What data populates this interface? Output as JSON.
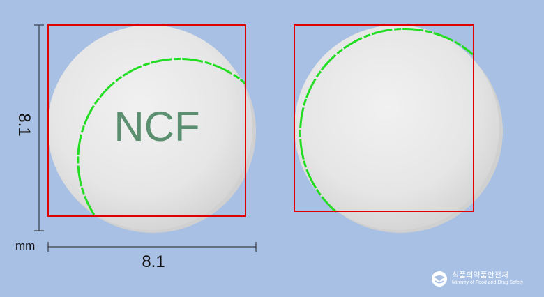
{
  "dimensions": {
    "height_value": "8.1",
    "width_value": "8.1",
    "unit": "mm"
  },
  "pill_front": {
    "imprint": "NCF"
  },
  "brand": {
    "korean_name": "식품의약품안전처",
    "english_name": "Ministry of Food and Drug Safety",
    "logo_icon": "mfds-logo-icon"
  },
  "colors": {
    "background": "#a8c0e4",
    "pill": "#e9e9e9",
    "imprint": "#5a9070",
    "bounding_box": "#e00000",
    "edge_highlight": "#22dd22"
  }
}
